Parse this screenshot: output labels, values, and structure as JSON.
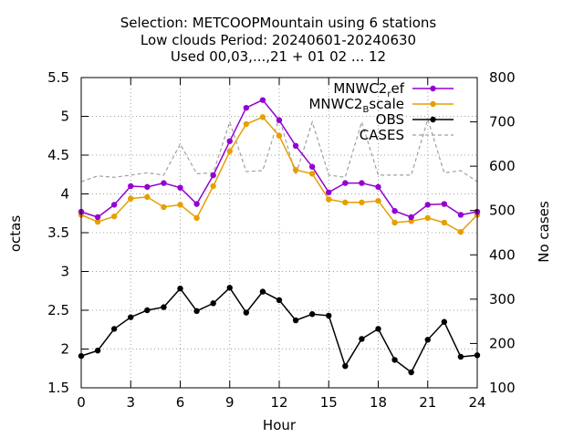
{
  "chart_data": {
    "type": "line",
    "title_lines": [
      "Selection: METCOOPMountain using     6 stations",
      "Low clouds   Period: 20240601-20240630",
      "Used 00,03,...,21 + 01 02 ... 12"
    ],
    "xlabel": "Hour",
    "ylabel": "octas",
    "y2label": "No cases",
    "xlim": [
      0,
      24
    ],
    "ylim": [
      1.5,
      5.5
    ],
    "y2lim": [
      100,
      800
    ],
    "x_ticks": [
      0,
      3,
      6,
      9,
      12,
      15,
      18,
      21,
      24
    ],
    "y_ticks": [
      1.5,
      2,
      2.5,
      3,
      3.5,
      4,
      4.5,
      5,
      5.5
    ],
    "y2_ticks": [
      100,
      200,
      300,
      400,
      500,
      600,
      700,
      800
    ],
    "grid": true,
    "legend_position": "top-right",
    "x": [
      0,
      1,
      2,
      3,
      4,
      5,
      6,
      7,
      8,
      9,
      10,
      11,
      12,
      13,
      14,
      15,
      16,
      17,
      18,
      19,
      20,
      21,
      22,
      23,
      24
    ],
    "series": [
      {
        "name": "MNWC2",
        "name_sub": "r",
        "name_after": "ef",
        "axis": "y1",
        "color": "#9400d3",
        "marker": "circle",
        "values": [
          3.77,
          3.7,
          3.86,
          4.1,
          4.09,
          4.14,
          4.08,
          3.87,
          4.24,
          4.68,
          5.11,
          5.21,
          4.95,
          4.62,
          4.35,
          4.02,
          4.14,
          4.14,
          4.09,
          3.78,
          3.7,
          3.86,
          3.87,
          3.73,
          3.77
        ]
      },
      {
        "name": "MNWC2",
        "name_sub": "B",
        "name_after": "scale",
        "axis": "y1",
        "color": "#e69f00",
        "marker": "circle",
        "values": [
          3.73,
          3.64,
          3.71,
          3.94,
          3.96,
          3.83,
          3.86,
          3.69,
          4.1,
          4.55,
          4.9,
          4.99,
          4.75,
          4.31,
          4.26,
          3.93,
          3.89,
          3.89,
          3.91,
          3.63,
          3.65,
          3.69,
          3.63,
          3.51,
          3.73
        ]
      },
      {
        "name": "OBS",
        "axis": "y1",
        "color": "#000000",
        "marker": "circle",
        "values": [
          1.91,
          1.98,
          2.26,
          2.41,
          2.5,
          2.54,
          2.78,
          2.49,
          2.59,
          2.79,
          2.47,
          2.74,
          2.63,
          2.37,
          2.45,
          2.43,
          1.78,
          2.13,
          2.26,
          1.86,
          1.7,
          2.12,
          2.35,
          1.9,
          1.92
        ]
      },
      {
        "name": "CASES",
        "axis": "y2",
        "color": "#a0a0a0",
        "dashed": true,
        "values": [
          565,
          578,
          575,
          580,
          585,
          580,
          650,
          583,
          585,
          700,
          588,
          590,
          710,
          580,
          700,
          580,
          575,
          700,
          580,
          580,
          580,
          706,
          585,
          590,
          565
        ]
      }
    ]
  }
}
